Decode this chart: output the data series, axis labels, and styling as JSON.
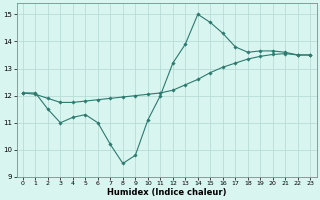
{
  "line1_x": [
    0,
    1,
    2,
    3,
    4,
    5,
    6,
    7,
    8,
    9,
    10,
    11,
    12,
    13,
    14,
    15,
    16,
    17,
    18,
    19,
    20,
    21,
    22,
    23
  ],
  "line1_y": [
    12.1,
    12.1,
    11.5,
    11.0,
    11.2,
    11.3,
    11.0,
    10.2,
    9.5,
    9.8,
    11.1,
    12.0,
    13.2,
    13.9,
    15.0,
    14.7,
    14.3,
    13.8,
    13.6,
    13.65,
    13.65,
    13.6,
    13.5,
    13.5
  ],
  "line2_x": [
    0,
    1,
    2,
    3,
    4,
    5,
    6,
    7,
    8,
    9,
    10,
    11,
    12,
    13,
    14,
    15,
    16,
    17,
    18,
    19,
    20,
    21,
    22,
    23
  ],
  "line2_y": [
    12.1,
    12.05,
    11.9,
    11.75,
    11.75,
    11.8,
    11.85,
    11.9,
    11.95,
    12.0,
    12.05,
    12.1,
    12.2,
    12.4,
    12.6,
    12.85,
    13.05,
    13.2,
    13.35,
    13.45,
    13.52,
    13.55,
    13.5,
    13.5
  ],
  "line_color": "#2d7a6e",
  "bg_color": "#d8f5f0",
  "grid_color": "#b8dcd8",
  "xlabel": "Humidex (Indice chaleur)",
  "xlim": [
    -0.5,
    23.5
  ],
  "ylim": [
    9,
    15.4
  ],
  "yticks": [
    9,
    10,
    11,
    12,
    13,
    14,
    15
  ],
  "xticks": [
    0,
    1,
    2,
    3,
    4,
    5,
    6,
    7,
    8,
    9,
    10,
    11,
    12,
    13,
    14,
    15,
    16,
    17,
    18,
    19,
    20,
    21,
    22,
    23
  ],
  "marker": "D",
  "markersize": 1.8,
  "linewidth": 0.8,
  "tick_fontsize": 5.0,
  "xlabel_fontsize": 6.0
}
